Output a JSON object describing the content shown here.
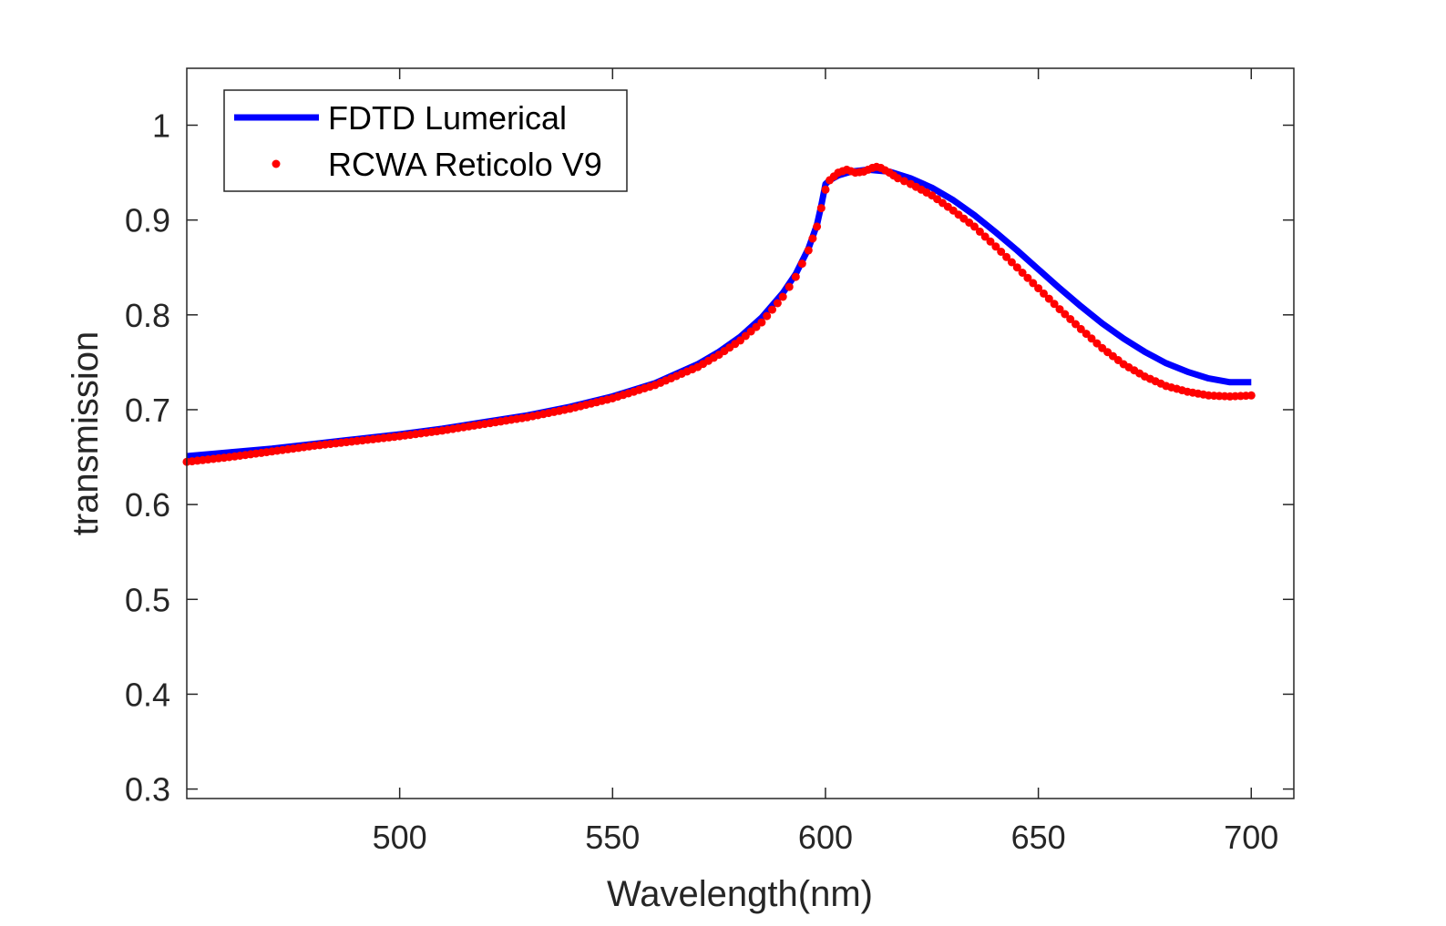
{
  "chart_data": {
    "type": "line",
    "xlabel": "Wavelength(nm)",
    "ylabel": "transmission",
    "xlim": [
      450,
      710
    ],
    "ylim": [
      0.29,
      1.06
    ],
    "xticks": [
      500,
      550,
      600,
      650,
      700
    ],
    "xtick_labels": [
      "500",
      "550",
      "600",
      "650",
      "700"
    ],
    "yticks": [
      0.3,
      0.4,
      0.5,
      0.6,
      0.7,
      0.8,
      0.9,
      1.0
    ],
    "ytick_labels": [
      "0.3",
      "0.4",
      "0.5",
      "0.6",
      "0.7",
      "0.8",
      "0.9",
      "1"
    ],
    "grid": false,
    "legend_position": "top-left",
    "series": [
      {
        "name": "FDTD Lumerical",
        "style": "line",
        "color": "#0000ff",
        "x": [
          450,
          460,
          470,
          480,
          490,
          500,
          510,
          520,
          530,
          540,
          550,
          560,
          570,
          575,
          580,
          585,
          590,
          593,
          596,
          598,
          599,
          600,
          601,
          603,
          606,
          610,
          615,
          620,
          625,
          630,
          635,
          640,
          645,
          650,
          655,
          660,
          665,
          670,
          675,
          680,
          685,
          690,
          695,
          700
        ],
        "y": [
          0.651,
          0.655,
          0.659,
          0.664,
          0.669,
          0.674,
          0.68,
          0.687,
          0.694,
          0.703,
          0.714,
          0.728,
          0.748,
          0.761,
          0.777,
          0.797,
          0.823,
          0.843,
          0.87,
          0.895,
          0.915,
          0.938,
          0.942,
          0.947,
          0.951,
          0.953,
          0.951,
          0.944,
          0.934,
          0.921,
          0.905,
          0.887,
          0.868,
          0.848,
          0.828,
          0.809,
          0.791,
          0.775,
          0.761,
          0.749,
          0.74,
          0.733,
          0.729,
          0.729
        ]
      },
      {
        "name": "RCWA Reticolo V9",
        "style": "dots",
        "color": "#ff0000",
        "x": [
          450,
          460,
          470,
          480,
          490,
          500,
          510,
          520,
          530,
          540,
          550,
          560,
          570,
          575,
          580,
          585,
          590,
          593,
          596,
          598,
          600,
          601,
          603,
          605,
          607,
          609,
          611,
          612,
          613,
          615,
          617,
          620,
          625,
          630,
          635,
          640,
          645,
          650,
          655,
          660,
          665,
          670,
          675,
          680,
          685,
          690,
          695,
          700
        ],
        "y": [
          0.645,
          0.65,
          0.656,
          0.662,
          0.667,
          0.672,
          0.678,
          0.685,
          0.692,
          0.701,
          0.712,
          0.726,
          0.745,
          0.758,
          0.773,
          0.792,
          0.819,
          0.84,
          0.868,
          0.893,
          0.932,
          0.942,
          0.95,
          0.953,
          0.95,
          0.951,
          0.955,
          0.956,
          0.955,
          0.95,
          0.944,
          0.938,
          0.926,
          0.91,
          0.893,
          0.872,
          0.85,
          0.828,
          0.806,
          0.785,
          0.765,
          0.748,
          0.735,
          0.725,
          0.719,
          0.715,
          0.714,
          0.715
        ]
      }
    ]
  }
}
